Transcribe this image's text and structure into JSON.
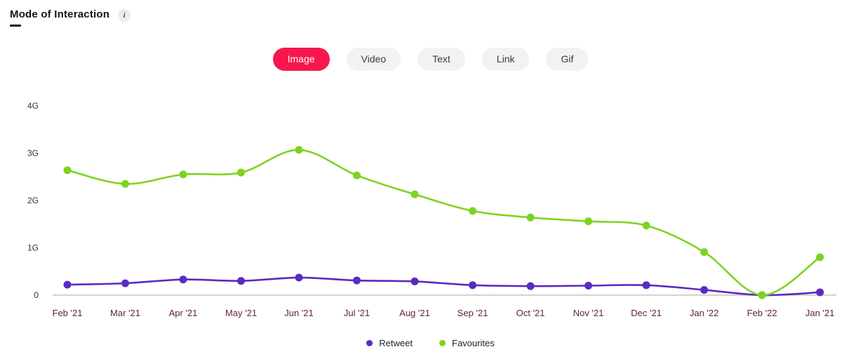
{
  "header": {
    "title": "Mode of Interaction",
    "info_glyph": "i"
  },
  "tabs": [
    {
      "label": "Image",
      "active": true
    },
    {
      "label": "Video",
      "active": false
    },
    {
      "label": "Text",
      "active": false
    },
    {
      "label": "Link",
      "active": false
    },
    {
      "label": "Gif",
      "active": false
    }
  ],
  "colors": {
    "accent": "#f7174e",
    "tab_inactive_bg": "#f2f2f2",
    "axis_line": "#c4c4c4",
    "y_label": "#333333",
    "x_label": "#62203f",
    "retweet": "#5b2ac2",
    "favourites": "#7ed321"
  },
  "chart_data": {
    "type": "line",
    "unit": "G",
    "categories": [
      "Feb '21",
      "Mar '21",
      "Apr '21",
      "May '21",
      "Jun '21",
      "Jul '21",
      "Aug '21",
      "Sep '21",
      "Oct '21",
      "Nov '21",
      "Dec '21",
      "Jan '22",
      "Feb '22",
      "Jan '21"
    ],
    "y_ticks": [
      "0",
      "1G",
      "2G",
      "3G",
      "4G"
    ],
    "ylim": [
      0,
      4.45
    ],
    "grid": "none",
    "legend_position": "bottom",
    "series": [
      {
        "name": "Retweet",
        "color": "#5b2ac2",
        "values": [
          0.22,
          0.25,
          0.33,
          0.3,
          0.37,
          0.31,
          0.29,
          0.21,
          0.19,
          0.2,
          0.21,
          0.11,
          0.0,
          0.06
        ]
      },
      {
        "name": "Favourites",
        "color": "#7ed321",
        "values": [
          2.64,
          2.35,
          2.55,
          2.59,
          3.07,
          2.53,
          2.13,
          1.78,
          1.64,
          1.56,
          1.47,
          0.91,
          0.0,
          0.8
        ]
      }
    ]
  }
}
